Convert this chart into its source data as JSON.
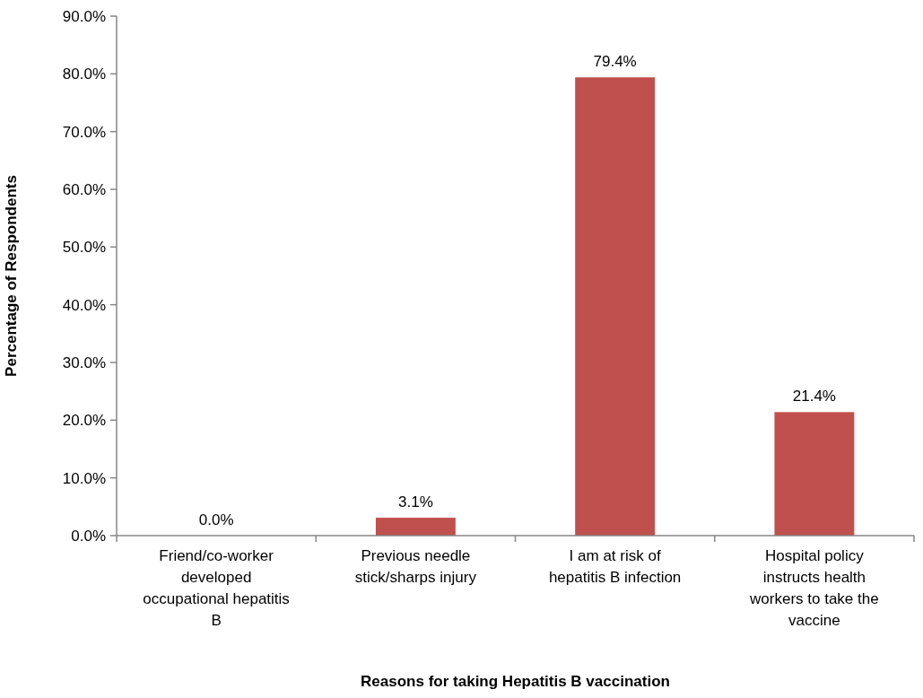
{
  "chart_data": {
    "type": "bar",
    "xlabel": "Reasons for taking Hepatitis B vaccination",
    "ylabel": "Percentage of Respondents",
    "categories": [
      "Friend/co-worker developed occupational hepatitis B",
      "Previous needle stick/sharps injury",
      "I am at risk of hepatitis B infection",
      "Hospital policy instructs health workers to take the vaccine"
    ],
    "values": [
      0,
      3.1,
      79.4,
      21.4
    ],
    "color": "#c0504d",
    "value_labels": [
      "0.0%",
      "3.1%",
      "79.4%",
      "21.4%"
    ],
    "ylim": [
      0,
      90
    ],
    "yticks": [
      {
        "value": 0,
        "label": "0.0%"
      },
      {
        "value": 10,
        "label": "10.0%"
      },
      {
        "value": 20,
        "label": "20.0%"
      },
      {
        "value": 30,
        "label": "30.0%"
      },
      {
        "value": 40,
        "label": "40.0%"
      },
      {
        "value": 50,
        "label": "50.0%"
      },
      {
        "value": 60,
        "label": "60.0%"
      },
      {
        "value": 70,
        "label": "70.0%"
      },
      {
        "value": 80,
        "label": "80.0%"
      },
      {
        "value": 90,
        "label": "90.0%"
      }
    ],
    "grid": false
  }
}
